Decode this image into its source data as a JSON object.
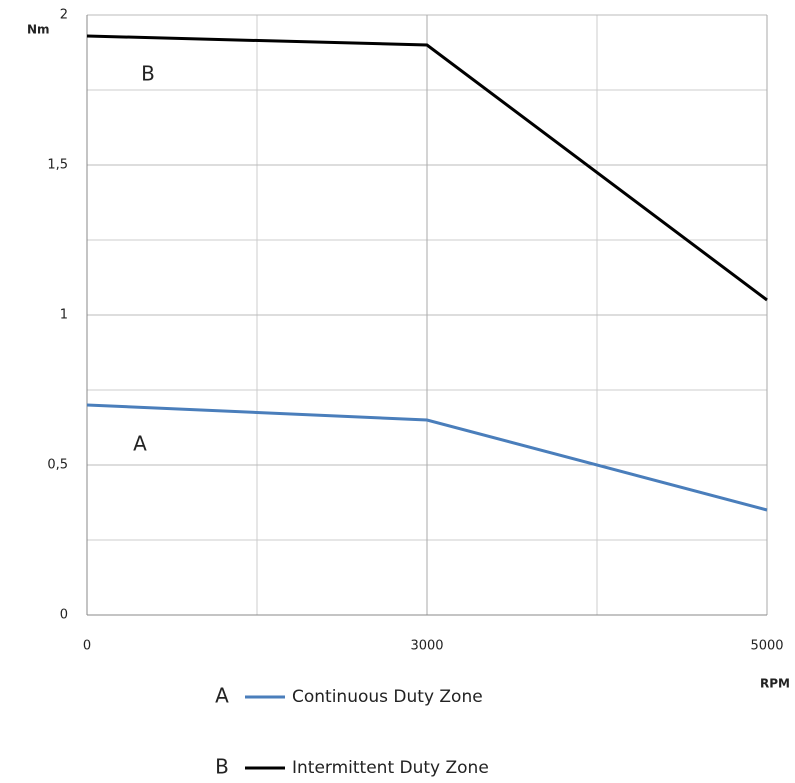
{
  "chart_data": {
    "type": "line",
    "y_label": "Nm",
    "x_label": "RPM",
    "categories": [
      "0",
      "3000",
      "5000"
    ],
    "ylim": [
      0,
      2
    ],
    "yticks": [
      0,
      {
        "value": 0.5,
        "label": "0,5"
      },
      1,
      {
        "value": 1.5,
        "label": "1,5"
      },
      2
    ],
    "grid": true,
    "series": [
      {
        "name": "Continuous Duty Zone",
        "label": "A",
        "color": "#4a7ebb",
        "values": [
          0.7,
          0.65,
          0.35
        ]
      },
      {
        "name": "Intermittent Duty Zone",
        "label": "B",
        "color": "#000000",
        "values": [
          1.93,
          1.9,
          1.05
        ]
      }
    ]
  }
}
